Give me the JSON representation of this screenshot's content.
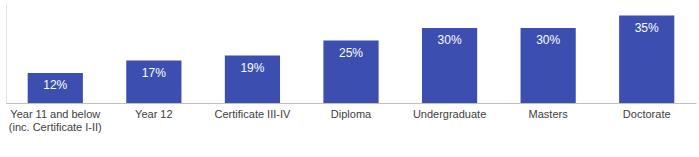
{
  "chart_data": {
    "type": "bar",
    "categories": [
      "Year 11 and below\n(inc. Certificate I-II)",
      "Year 12",
      "Certificate III-IV",
      "Diploma",
      "Undergraduate",
      "Masters",
      "Doctorate"
    ],
    "values": [
      12,
      17,
      19,
      25,
      30,
      30,
      35
    ],
    "value_labels": [
      "12%",
      "17%",
      "19%",
      "25%",
      "30%",
      "30%",
      "35%"
    ],
    "color": "#3c4fb0",
    "ylim": [
      0,
      40
    ],
    "data_labels": true,
    "tick_labels": "x",
    "grid": false
  }
}
